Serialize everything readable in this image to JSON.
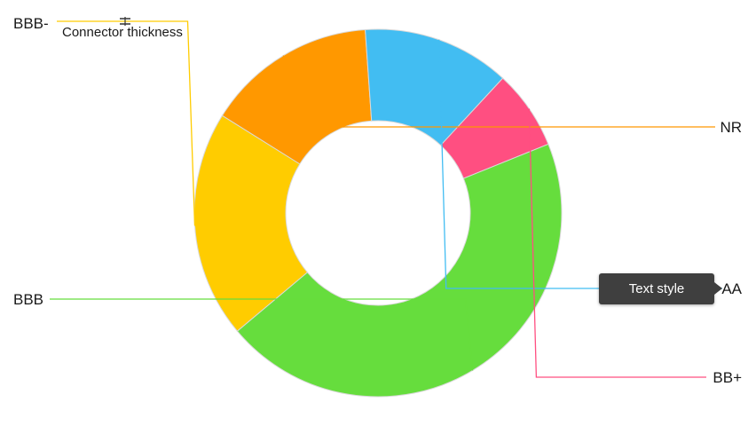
{
  "chart_data": {
    "type": "pie",
    "variant": "donut",
    "slices": [
      {
        "label": "NR",
        "value": 15,
        "color": "#FF9800"
      },
      {
        "label": "AA",
        "value": 13,
        "color": "#42BDF2"
      },
      {
        "label": "BB+",
        "value": 7,
        "color": "#FF4F81"
      },
      {
        "label": "BBB",
        "value": 45,
        "color": "#66DD3D"
      },
      {
        "label": "BBB-",
        "value": 20,
        "color": "#FFCC00"
      }
    ],
    "start_angle_deg": 302,
    "label_position": "outside with connector lines"
  },
  "annotation": {
    "connector_thickness_label": "Connector thickness"
  },
  "tooltip": {
    "text": "Text style"
  },
  "colors": {
    "slice_border": "#d9d9d9",
    "tooltip_bg": "#3f3f3f",
    "tooltip_text": "#ffffff",
    "label_text": "#1a1a1a",
    "handle_icon": "#333333"
  },
  "icons": {
    "thickness_handle": "resize-handle-icon"
  }
}
